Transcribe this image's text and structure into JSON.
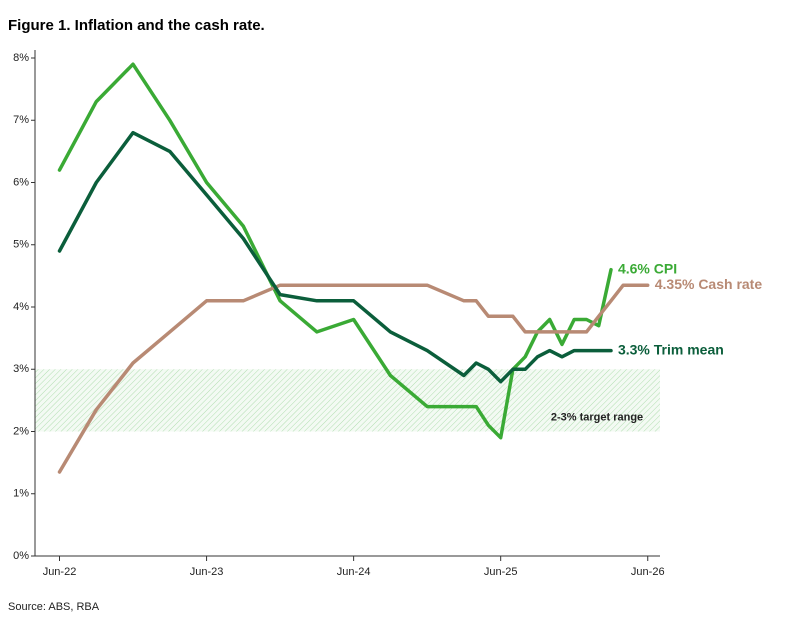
{
  "chart_data": {
    "type": "line",
    "title": "Figure 1. Inflation and the cash rate.",
    "source": "Source: ABS, RBA",
    "xlim": [
      "2022-04",
      "2026-07"
    ],
    "xticks": [
      {
        "value": "2022-06",
        "label": "Jun-22"
      },
      {
        "value": "2023-06",
        "label": "Jun-23"
      },
      {
        "value": "2024-06",
        "label": "Jun-24"
      },
      {
        "value": "2025-06",
        "label": "Jun-25"
      },
      {
        "value": "2026-06",
        "label": "Jun-26"
      }
    ],
    "ylim": [
      0,
      8
    ],
    "yticks": [
      {
        "value": 0,
        "label": "0%"
      },
      {
        "value": 1,
        "label": "1%"
      },
      {
        "value": 2,
        "label": "2%"
      },
      {
        "value": 3,
        "label": "3%"
      },
      {
        "value": 4,
        "label": "4%"
      },
      {
        "value": 5,
        "label": "5%"
      },
      {
        "value": 6,
        "label": "6%"
      },
      {
        "value": 7,
        "label": "7%"
      },
      {
        "value": 8,
        "label": "8%"
      }
    ],
    "grid": false,
    "target_band": [
      2,
      3
    ],
    "target_label": "2-3% target range",
    "band_color": "#3aaa35",
    "series": [
      {
        "name": "CPI",
        "end_label": "4.6% CPI",
        "color": "#3aaa35",
        "x": [
          "2022-06",
          "2022-09",
          "2022-12",
          "2023-03",
          "2023-06",
          "2023-09",
          "2023-12",
          "2024-03",
          "2024-06",
          "2024-09",
          "2024-12",
          "2025-03",
          "2025-04",
          "2025-05",
          "2025-06",
          "2025-07",
          "2025-08",
          "2025-09",
          "2025-10",
          "2025-11",
          "2025-12",
          "2026-01",
          "2026-02",
          "2026-03"
        ],
        "values": [
          6.2,
          7.3,
          7.9,
          7.0,
          6.0,
          5.3,
          4.1,
          3.6,
          3.8,
          2.9,
          2.4,
          2.4,
          2.4,
          2.1,
          1.9,
          3.0,
          3.2,
          3.6,
          3.8,
          3.4,
          3.8,
          3.8,
          3.7,
          4.6
        ]
      },
      {
        "name": "Cash rate",
        "end_label": "4.35% Cash rate",
        "color": "#b88a74",
        "x": [
          "2022-06",
          "2022-09",
          "2022-12",
          "2023-03",
          "2023-06",
          "2023-09",
          "2023-12",
          "2024-03",
          "2024-06",
          "2024-09",
          "2024-12",
          "2025-03",
          "2025-04",
          "2025-05",
          "2025-06",
          "2025-07",
          "2025-08",
          "2025-09",
          "2025-10",
          "2025-11",
          "2025-12",
          "2026-01",
          "2026-02",
          "2026-03",
          "2026-04",
          "2026-05",
          "2026-06"
        ],
        "values": [
          1.35,
          2.35,
          3.1,
          3.6,
          4.1,
          4.1,
          4.35,
          4.35,
          4.35,
          4.35,
          4.35,
          4.1,
          4.1,
          3.85,
          3.85,
          3.85,
          3.6,
          3.6,
          3.6,
          3.6,
          3.6,
          3.6,
          3.85,
          4.1,
          4.35,
          4.35,
          4.35
        ]
      },
      {
        "name": "Trim mean",
        "end_label": "3.3% Trim mean",
        "color": "#0b5e3b",
        "x": [
          "2022-06",
          "2022-09",
          "2022-12",
          "2023-03",
          "2023-06",
          "2023-09",
          "2023-12",
          "2024-03",
          "2024-06",
          "2024-09",
          "2024-12",
          "2025-03",
          "2025-04",
          "2025-05",
          "2025-06",
          "2025-07",
          "2025-08",
          "2025-09",
          "2025-10",
          "2025-11",
          "2025-12",
          "2026-01",
          "2026-02",
          "2026-03"
        ],
        "values": [
          4.9,
          6.0,
          6.8,
          6.5,
          5.8,
          5.1,
          4.2,
          4.1,
          4.1,
          3.6,
          3.3,
          2.9,
          3.1,
          3.0,
          2.8,
          3.0,
          3.0,
          3.2,
          3.3,
          3.2,
          3.3,
          3.3,
          3.3,
          3.3
        ]
      }
    ]
  }
}
